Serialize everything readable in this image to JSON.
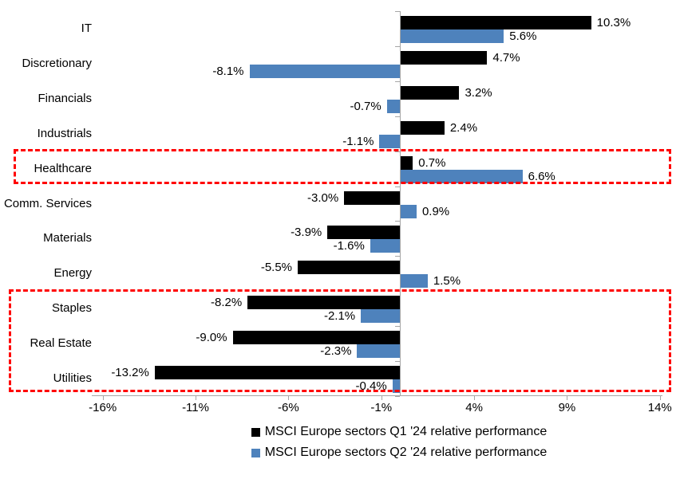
{
  "chart_data": {
    "type": "bar",
    "orientation": "horizontal",
    "title": "",
    "xlabel": "",
    "ylabel": "",
    "gridlines": false,
    "categories": [
      "IT",
      "Discretionary",
      "Financials",
      "Industrials",
      "Healthcare",
      "Comm. Services",
      "Materials",
      "Energy",
      "Staples",
      "Real Estate",
      "Utilities"
    ],
    "series": [
      {
        "name": "MSCI Europe sectors Q1 '24 relative performance",
        "color": "#000000",
        "values": [
          10.3,
          4.7,
          3.2,
          2.4,
          0.7,
          -3.0,
          -3.9,
          -5.5,
          -8.2,
          -9.0,
          -13.2
        ],
        "labels": [
          "10.3%",
          "4.7%",
          "3.2%",
          "2.4%",
          "0.7%",
          "-3.0%",
          "-3.9%",
          "-5.5%",
          "-8.2%",
          "-9.0%",
          "-13.2%"
        ]
      },
      {
        "name": "MSCI Europe sectors Q2 '24 relative performance",
        "color": "#4e82bc",
        "values": [
          5.6,
          -8.1,
          -0.7,
          -1.1,
          6.6,
          0.9,
          -1.6,
          1.5,
          -2.1,
          -2.3,
          -0.4
        ],
        "labels": [
          "5.6%",
          "-8.1%",
          "-0.7%",
          "-1.1%",
          "6.6%",
          "0.9%",
          "-1.6%",
          "1.5%",
          "-2.1%",
          "-2.3%",
          "-0.4%"
        ]
      }
    ],
    "x_axis": {
      "ticks": [
        -16,
        -11,
        -6,
        -1,
        4,
        9,
        14
      ],
      "tick_labels": [
        "-16%",
        "-11%",
        "-6%",
        "-1%",
        "4%",
        "9%",
        "14%"
      ],
      "range": [
        -16.6,
        14.2
      ],
      "unit": "%"
    },
    "legend": {
      "position": "bottom"
    },
    "highlights": [
      {
        "type": "dashed-box",
        "color": "#ff0000",
        "rows": [
          "Healthcare"
        ]
      },
      {
        "type": "dashed-box",
        "color": "#ff0000",
        "rows": [
          "Staples",
          "Real Estate",
          "Utilities"
        ]
      }
    ]
  }
}
